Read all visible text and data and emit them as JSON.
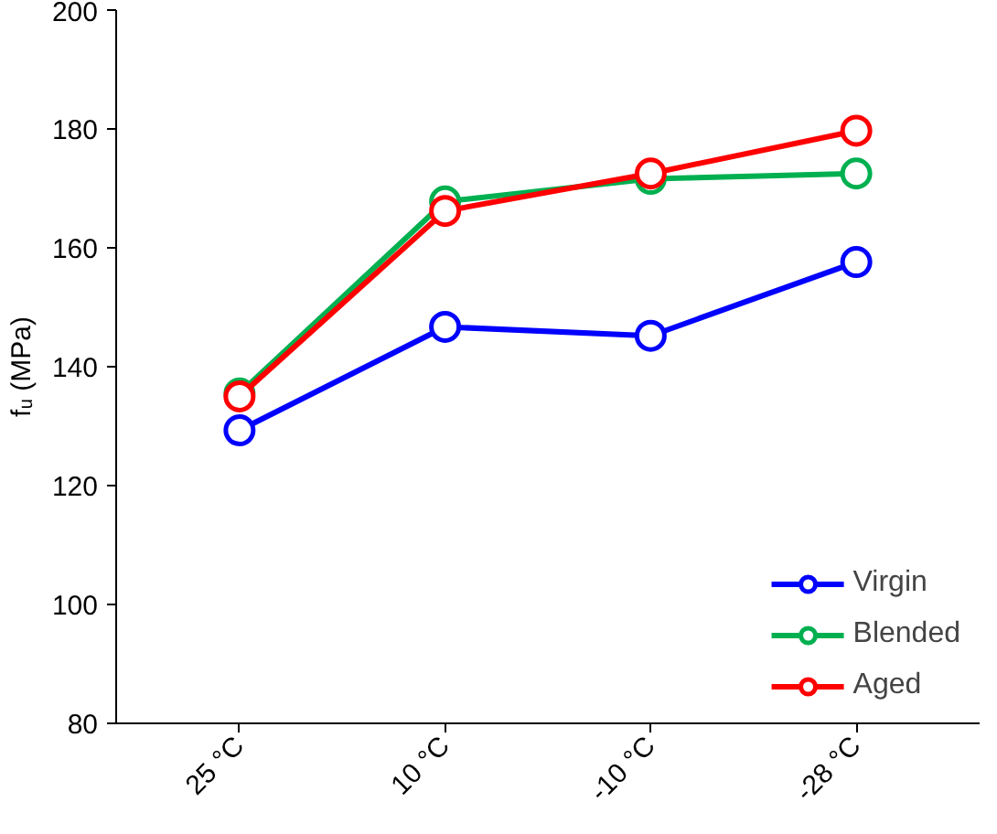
{
  "chart_data": {
    "type": "line",
    "ylabel": "fᵤ (MPa)",
    "categories": [
      "25 °C",
      "10 °C",
      "-10 °C",
      "-28 °C"
    ],
    "series": [
      {
        "name": "Virgin",
        "color": "#0000ff",
        "values": [
          129.3,
          146.7,
          145.2,
          157.6
        ]
      },
      {
        "name": "Blended",
        "color": "#00b050",
        "values": [
          135.5,
          167.8,
          171.6,
          172.5
        ]
      },
      {
        "name": "Aged",
        "color": "#ff0000",
        "values": [
          135.0,
          166.2,
          172.5,
          179.7
        ]
      }
    ],
    "ylim": [
      80,
      200
    ],
    "yticks": [
      80,
      100,
      120,
      140,
      160,
      180,
      200
    ],
    "grid": false,
    "legend": "bottom right",
    "marker": "circle",
    "line_style": "solid"
  }
}
